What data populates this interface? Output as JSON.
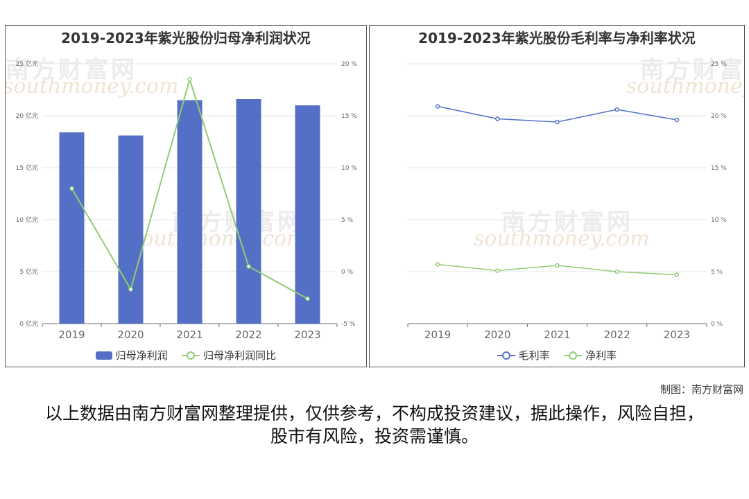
{
  "chart_data": [
    {
      "type": "bar",
      "title": "2019-2023年紫光股份归母净利润状况",
      "categories": [
        "2019",
        "2020",
        "2021",
        "2022",
        "2023"
      ],
      "series": [
        {
          "name": "归母净利润",
          "type": "bar",
          "axis": "left",
          "values": [
            18.4,
            18.1,
            21.5,
            21.6,
            21.0
          ],
          "color": "#5470c6"
        },
        {
          "name": "归母净利润同比",
          "type": "line",
          "axis": "right",
          "values": [
            8.0,
            -1.7,
            18.5,
            0.5,
            -2.6
          ],
          "color": "#91cc75"
        }
      ],
      "y_left": {
        "ticks": [
          "0 亿元",
          "5 亿元",
          "10 亿元",
          "15 亿元",
          "20 亿元",
          "25 亿元"
        ],
        "min": 0,
        "max": 25
      },
      "y_right": {
        "ticks": [
          "-5 %",
          "0 %",
          "5 %",
          "10 %",
          "15 %",
          "20 %"
        ],
        "min": -5,
        "max": 20
      },
      "legend_position": "bottom"
    },
    {
      "type": "line",
      "title": "2019-2023年紫光股份毛利率与净利率状况",
      "categories": [
        "2019",
        "2020",
        "2021",
        "2022",
        "2023"
      ],
      "series": [
        {
          "name": "毛利率",
          "values": [
            20.9,
            19.7,
            19.4,
            20.6,
            19.6
          ],
          "color": "#5470c6"
        },
        {
          "name": "净利率",
          "values": [
            5.7,
            5.1,
            5.6,
            5.0,
            4.7
          ],
          "color": "#91cc75"
        }
      ],
      "y_right": {
        "ticks": [
          "0 %",
          "5 %",
          "10 %",
          "15 %",
          "20 %",
          "25 %"
        ],
        "min": 0,
        "max": 25
      },
      "legend_position": "bottom"
    }
  ],
  "watermark": {
    "cn": "南方财富网",
    "en": "southmoney.com"
  },
  "credit": "制图：南方财富网",
  "disclaimer": "以上数据由南方财富网整理提供，仅供参考，不构成投资建议，据此操作，风险自担，股市有风险，投资需谨慎。"
}
